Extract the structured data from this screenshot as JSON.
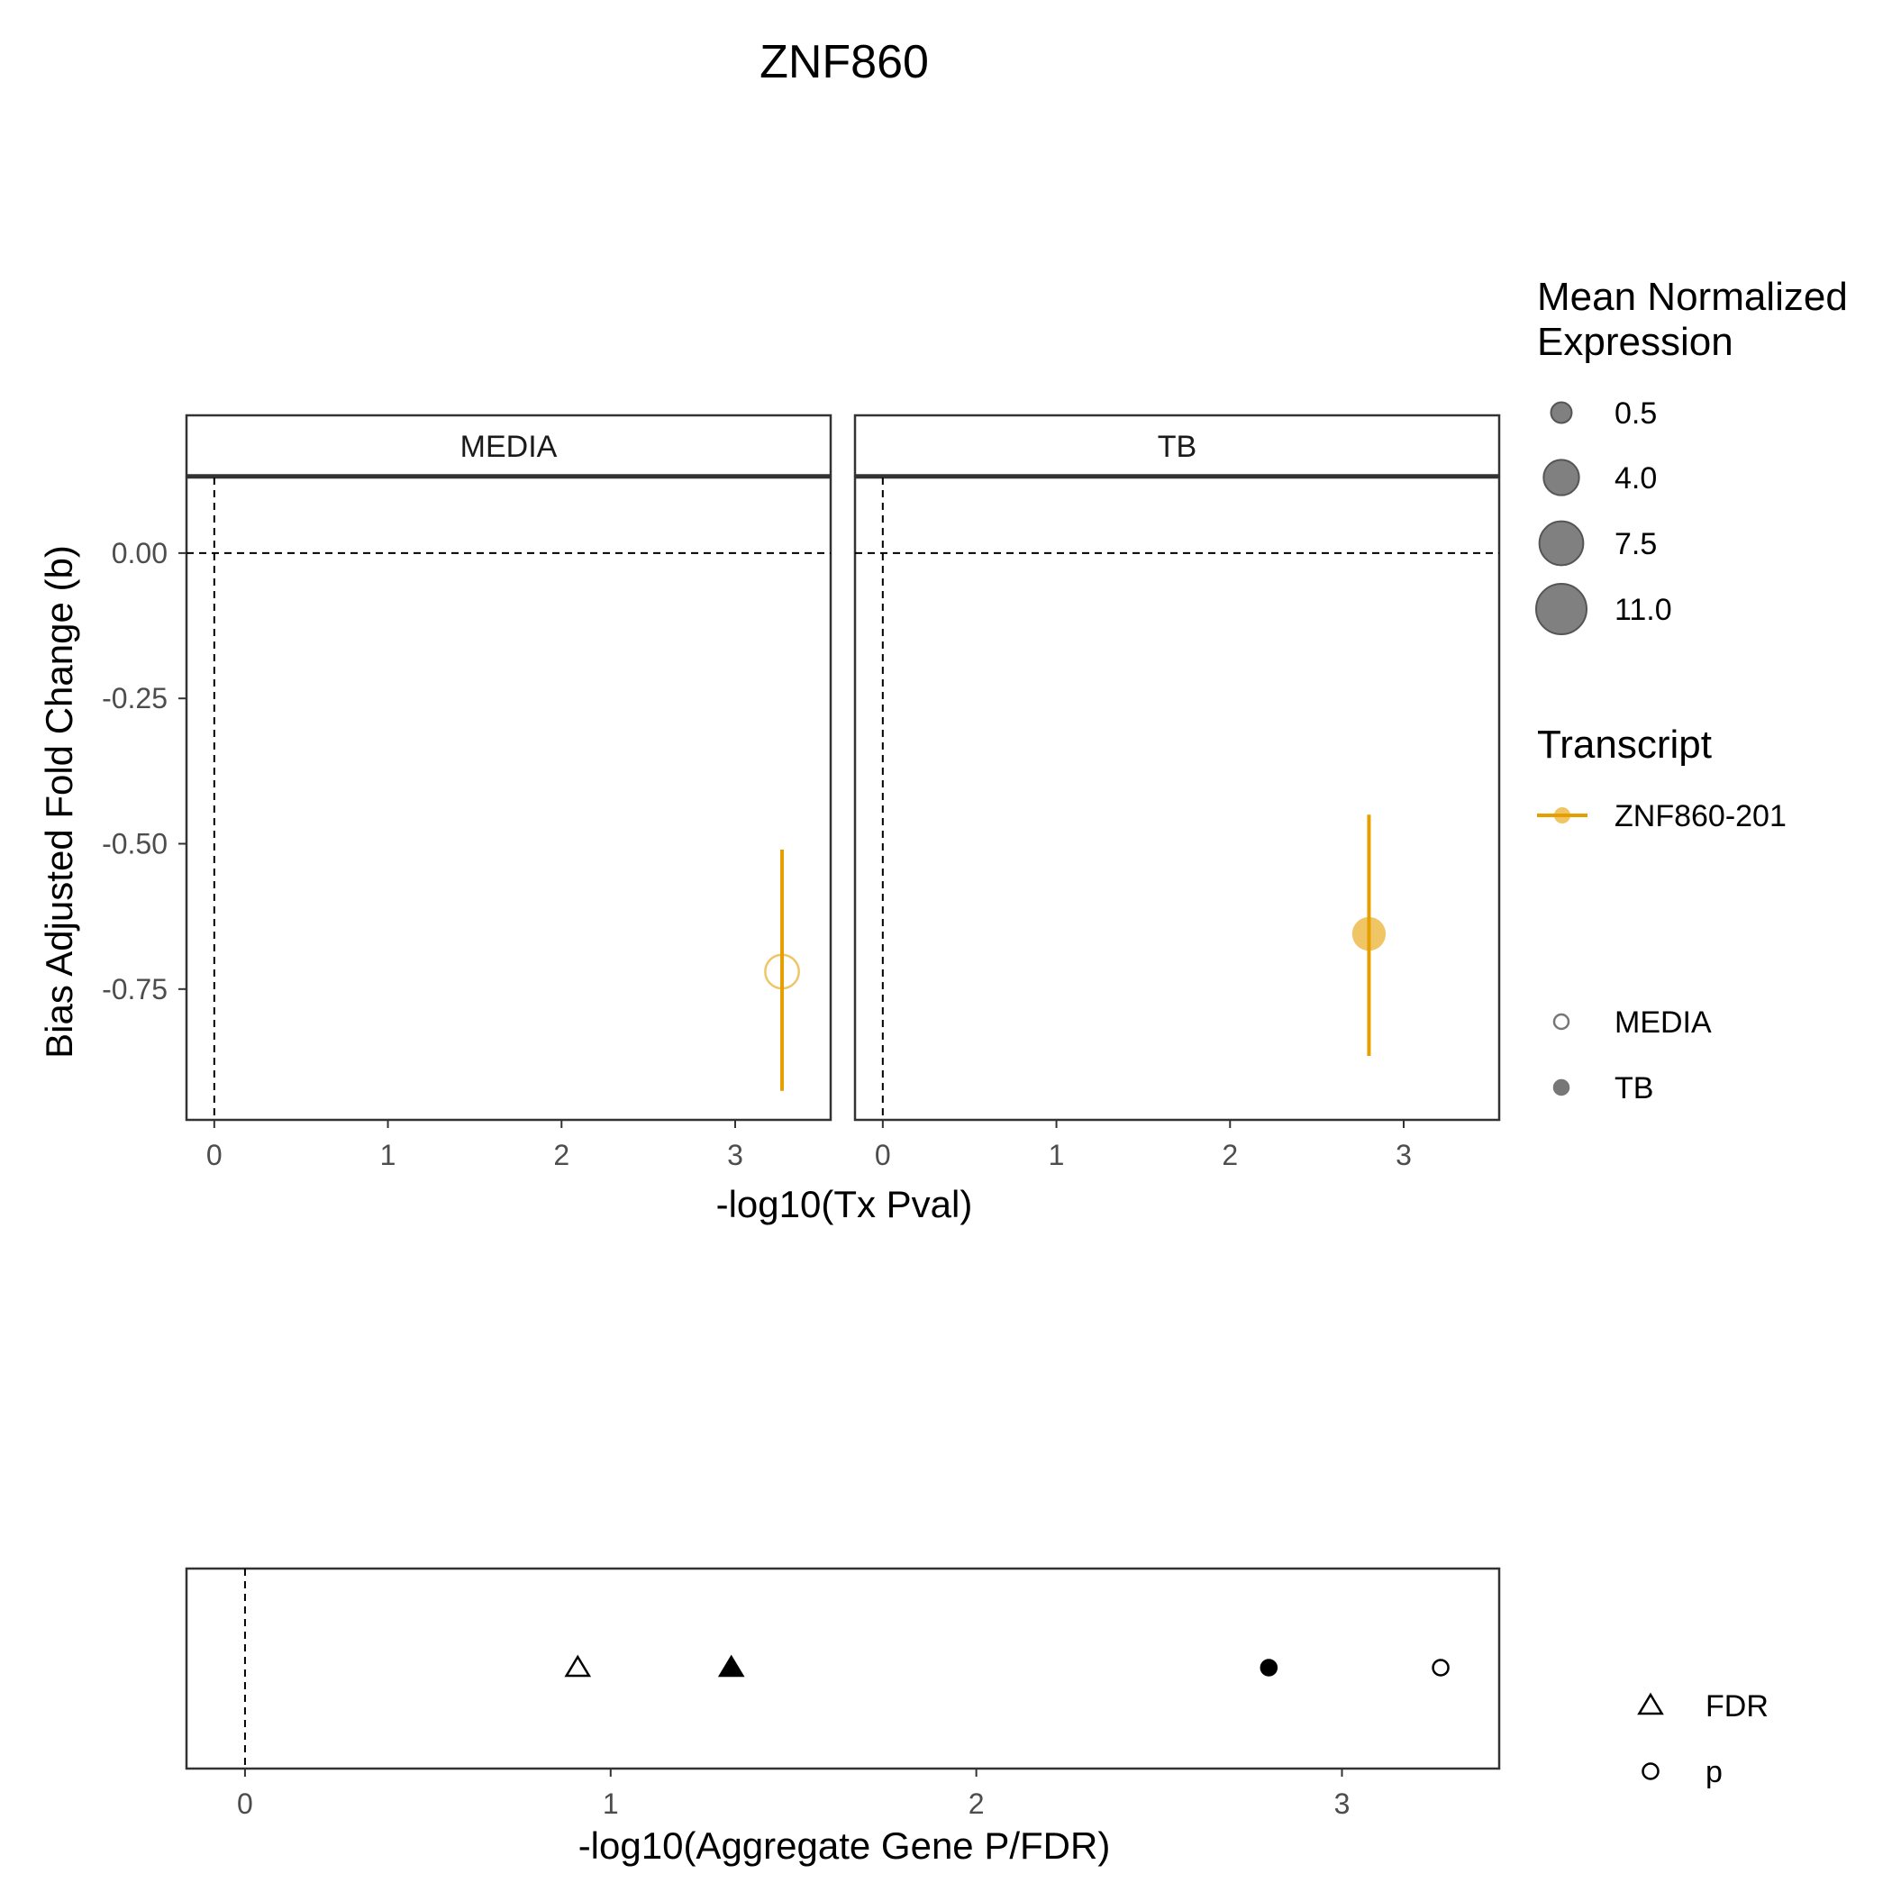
{
  "title": "ZNF860",
  "colors": {
    "transcript": "#E69F00",
    "panel_border": "#333333",
    "strip_fill": "#ffffff",
    "size_legend_fill": "#808080",
    "black": "#000000"
  },
  "chart_data": [
    {
      "type": "scatter",
      "name": "transcript-panels",
      "xlabel": "-log10(Tx Pval)",
      "ylabel": "Bias Adjusted Fold Change (b)",
      "facets": [
        "MEDIA",
        "TB"
      ],
      "xlim": [
        -0.16,
        3.55
      ],
      "ylim": [
        -0.975,
        0.13
      ],
      "x_ticks": [
        "0",
        "1",
        "2",
        "3"
      ],
      "y_ticks": [
        "0.00",
        "-0.25",
        "-0.50",
        "-0.75"
      ],
      "reference_lines": {
        "x": 0,
        "y": 0
      },
      "points": [
        {
          "facet": "MEDIA",
          "transcript": "ZNF860-201",
          "x": 3.27,
          "y": -0.72,
          "ymin": -0.925,
          "ymax": -0.51,
          "expression": 4.0,
          "condition": "MEDIA"
        },
        {
          "facet": "TB",
          "transcript": "ZNF860-201",
          "x": 2.8,
          "y": -0.655,
          "ymin": -0.865,
          "ymax": -0.45,
          "expression": 4.0,
          "condition": "TB"
        }
      ]
    },
    {
      "type": "scatter",
      "name": "aggregate-panel",
      "xlabel": "-log10(Aggregate Gene P/FDR)",
      "xlim": [
        -0.16,
        3.43
      ],
      "x_ticks": [
        "0",
        "1",
        "2",
        "3"
      ],
      "reference_lines": {
        "x": 0
      },
      "points": [
        {
          "x": 0.91,
          "measure": "FDR",
          "condition": "MEDIA"
        },
        {
          "x": 1.33,
          "measure": "FDR",
          "condition": "TB"
        },
        {
          "x": 2.8,
          "measure": "p",
          "condition": "TB"
        },
        {
          "x": 3.27,
          "measure": "p",
          "condition": "MEDIA"
        }
      ]
    }
  ],
  "legends": {
    "size": {
      "title_lines": [
        "Mean Normalized",
        "Expression"
      ],
      "items": [
        {
          "label": "0.5",
          "value": 0.5
        },
        {
          "label": "4.0",
          "value": 4.0
        },
        {
          "label": "7.5",
          "value": 7.5
        },
        {
          "label": "11.0",
          "value": 11.0
        }
      ]
    },
    "transcript": {
      "title": "Transcript",
      "items": [
        {
          "label": "ZNF860-201"
        }
      ]
    },
    "condition": {
      "items": [
        {
          "label": "MEDIA",
          "filled": false
        },
        {
          "label": "TB",
          "filled": true
        }
      ]
    },
    "measure": {
      "items": [
        {
          "label": "FDR",
          "shape": "triangle"
        },
        {
          "label": "p",
          "shape": "circle"
        }
      ]
    }
  }
}
